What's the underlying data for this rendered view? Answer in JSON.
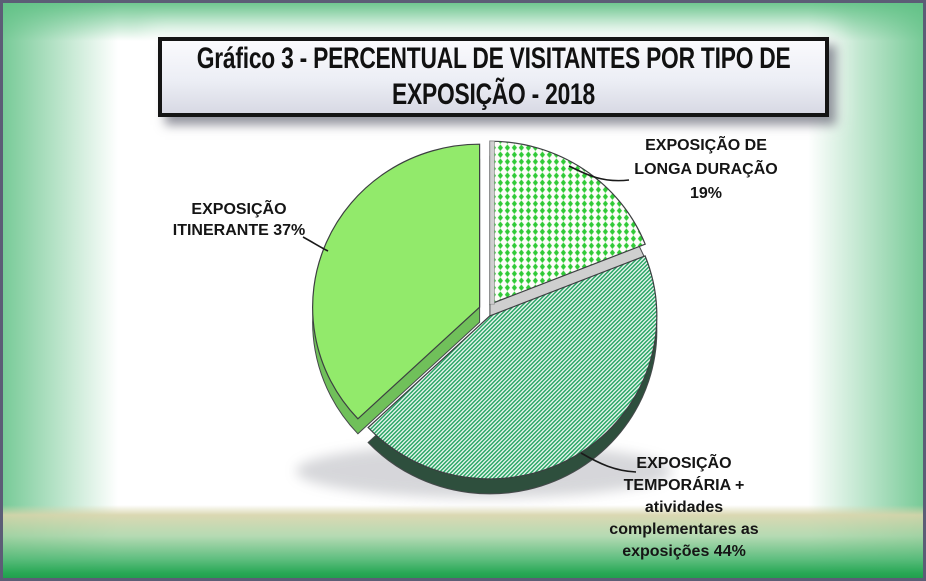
{
  "slide": {
    "title_line1": "Gráfico 3 - PERCENTUAL DE VISITANTES POR TIPO DE",
    "title_line2": "EXPOSIÇÃO - 2018"
  },
  "labels": {
    "longa": {
      "lines": [
        "EXPOSIÇÃO DE",
        "LONGA DURAÇÃO",
        "19%"
      ]
    },
    "itinerante": {
      "lines": [
        "EXPOSIÇÃO",
        "ITINERANTE 37%"
      ]
    },
    "temporaria": {
      "lines": [
        "EXPOSIÇÃO",
        "TEMPORÁRIA +",
        "atividades",
        "complementares as",
        "exposições 44%"
      ]
    }
  },
  "background": {
    "edge_green": "#60c185",
    "bottom_green": "#28a855",
    "bottom_tan": "#d9d6ab",
    "slide_border": "#5c5d76",
    "center": "#ffffff"
  },
  "chart_data": {
    "type": "pie",
    "title": "Gráfico 3 - PERCENTUAL DE VISITANTES POR TIPO DE EXPOSIÇÃO - 2018",
    "unit": "%",
    "start_angle_deg": 0,
    "direction": "clockwise",
    "effect_3d": true,
    "exploded": true,
    "legend": "none",
    "slices": [
      {
        "key": "longa-duracao",
        "label": "EXPOSIÇÃO DE LONGA DURAÇÃO",
        "value": 19,
        "fill_style": "dots",
        "color": "#2fca36",
        "pattern_background": "#fdfdf9",
        "side_color": "#cfcfcf"
      },
      {
        "key": "temporaria",
        "label": "EXPOSIÇÃO TEMPORÁRIA + atividades complementares as exposições",
        "value": 44,
        "fill_style": "stripes",
        "color": "#1da15d",
        "pattern_background": "#f7fbf8",
        "side_color": "#2e4f3d"
      },
      {
        "key": "itinerante",
        "label": "EXPOSIÇÃO ITINERANTE",
        "value": 37,
        "fill_style": "solid",
        "color": "#92ea6b",
        "pattern_background": "#92ea6b",
        "side_color": "#70c05a"
      }
    ]
  }
}
